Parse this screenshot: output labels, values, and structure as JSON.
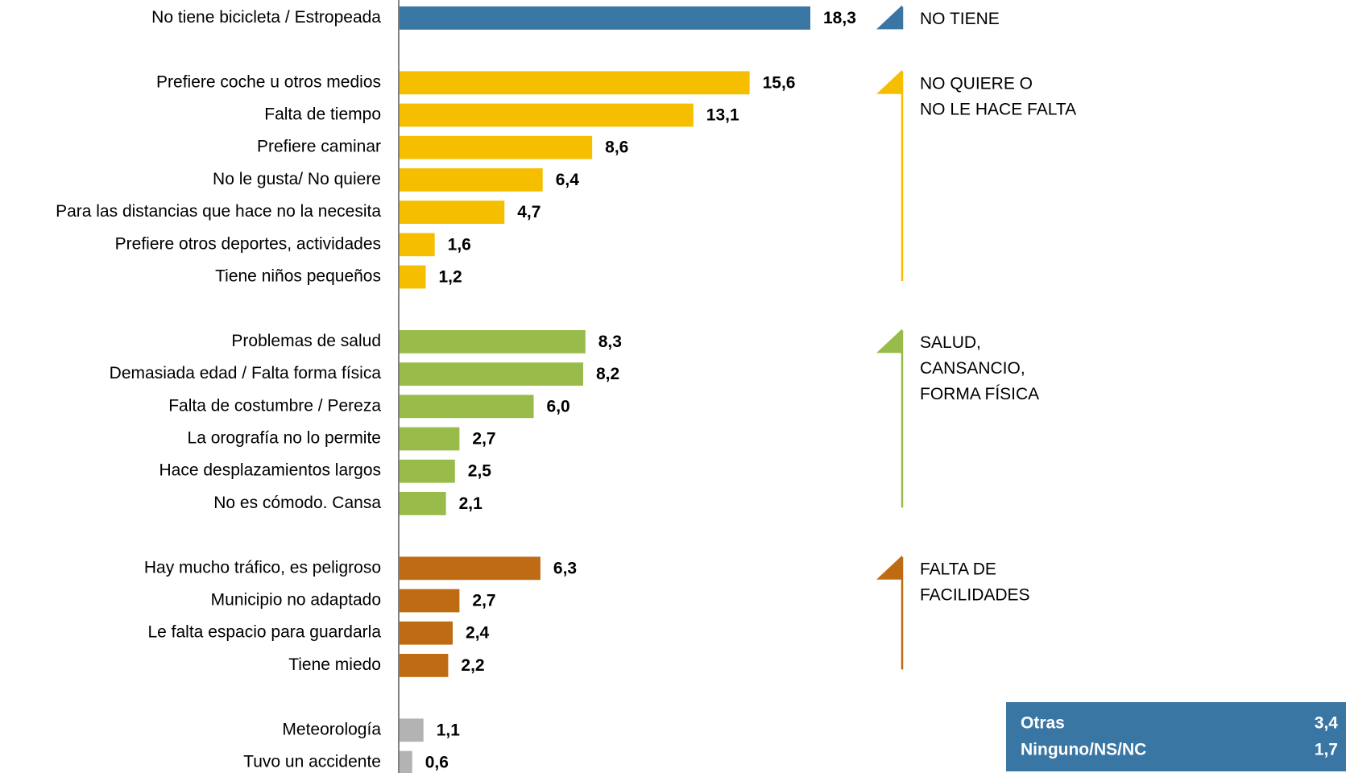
{
  "chart_data": {
    "type": "bar",
    "orientation": "horizontal",
    "groups": [
      {
        "label": [
          "NO TIENE"
        ],
        "color": "#3a76a4",
        "categories": [
          "No tiene bicicleta / Estropeada"
        ],
        "values": [
          18.3
        ],
        "value_labels": [
          "18,3"
        ]
      },
      {
        "label": [
          "NO QUIERE O",
          "NO LE HACE FALTA"
        ],
        "color": "#f5bf00",
        "categories": [
          "Prefiere coche u otros medios",
          "Falta de tiempo",
          "Prefiere caminar",
          "No le gusta/ No quiere",
          "Para las distancias que hace no la necesita",
          "Prefiere otros deportes, actividades",
          "Tiene niños pequeños"
        ],
        "values": [
          15.6,
          13.1,
          8.6,
          6.4,
          4.7,
          1.6,
          1.2
        ],
        "value_labels": [
          "15,6",
          "13,1",
          "8,6",
          "6,4",
          "4,7",
          "1,6",
          "1,2"
        ]
      },
      {
        "label": [
          "SALUD,",
          "CANSANCIO,",
          "FORMA FÍSICA"
        ],
        "color": "#98bb4a",
        "categories": [
          "Problemas de salud",
          "Demasiada edad / Falta forma física",
          "Falta de costumbre / Pereza",
          "La orografía no lo permite",
          "Hace desplazamientos largos",
          "No es cómodo. Cansa"
        ],
        "values": [
          8.3,
          8.2,
          6.0,
          2.7,
          2.5,
          2.1
        ],
        "value_labels": [
          "8,3",
          "8,2",
          "6,0",
          "2,7",
          "2,5",
          "2,1"
        ]
      },
      {
        "label": [
          "FALTA DE",
          "FACILIDADES"
        ],
        "color": "#bf6b14",
        "categories": [
          "Hay mucho tráfico, es peligroso",
          "Municipio no adaptado",
          "Le falta espacio para guardarla",
          "Tiene miedo"
        ],
        "values": [
          6.3,
          2.7,
          2.4,
          2.2
        ],
        "value_labels": [
          "6,3",
          "2,7",
          "2,4",
          "2,2"
        ]
      },
      {
        "color": "#b3b3b3",
        "categories": [
          "Meteorología",
          "Tuvo un accidente"
        ],
        "values": [
          1.1,
          0.6
        ],
        "value_labels": [
          "1,1",
          "0,6"
        ]
      }
    ],
    "others": {
      "color": "#3a76a4",
      "categories": [
        "Otras",
        "Ninguno/NS/NC"
      ],
      "values": [
        3.4,
        1.7
      ],
      "value_labels": [
        "3,4",
        "1,7"
      ]
    }
  }
}
